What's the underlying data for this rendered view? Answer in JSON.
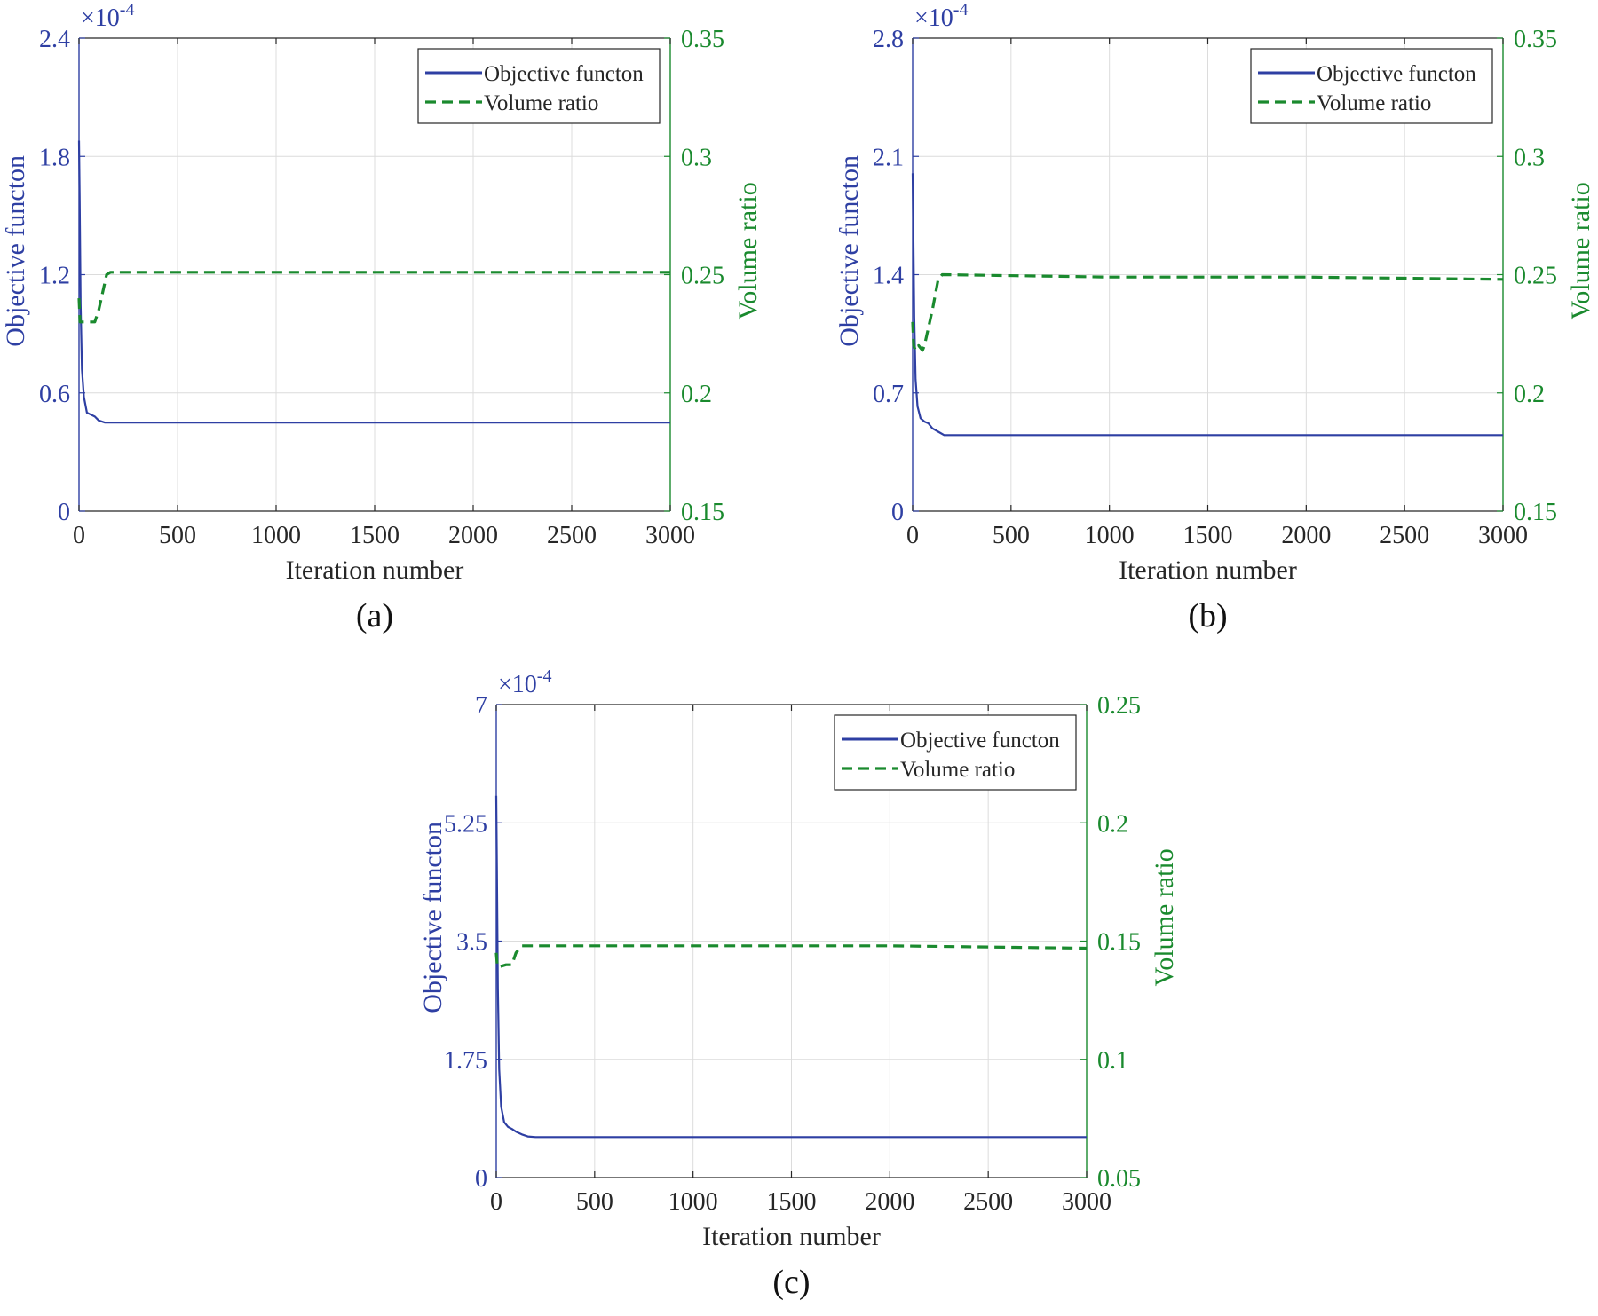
{
  "colors": {
    "objective": "#2e3fa3",
    "volume": "#1a8a2e",
    "axis": "#262626",
    "grid": "#dcdcdc"
  },
  "chart_data": [
    {
      "type": "line",
      "caption": "(a)",
      "xlabel": "Iteration number",
      "ylabel": "Objective functon",
      "y2label": "Volume ratio",
      "scale_label": "×10",
      "scale_exponent": "-4",
      "xlim": [
        0,
        3000
      ],
      "ylim": [
        0,
        2.4
      ],
      "y2lim": [
        0.15,
        0.35
      ],
      "xticks": [
        0,
        500,
        1000,
        1500,
        2000,
        2500,
        3000
      ],
      "xtick_labels": [
        "0",
        "500",
        "1000",
        "1500",
        "2000",
        "2500",
        "3000"
      ],
      "yticks": [
        0,
        0.6,
        1.2,
        1.8,
        2.4
      ],
      "ytick_labels": [
        "0",
        "0.6",
        "1.2",
        "1.8",
        "2.4"
      ],
      "y2ticks": [
        0.15,
        0.2,
        0.25,
        0.3,
        0.35
      ],
      "y2tick_labels": [
        "0.15",
        "0.2",
        "0.25",
        "0.3",
        "0.35"
      ],
      "legend": [
        "Objective functon",
        "Volume ratio"
      ],
      "series": [
        {
          "name": "Objective functon",
          "axis": "left",
          "style": "solid",
          "x": [
            0,
            3,
            8,
            15,
            25,
            40,
            60,
            80,
            100,
            130,
            160,
            200,
            400,
            1000,
            2000,
            3000
          ],
          "y": [
            1.88,
            1.6,
            1.05,
            0.72,
            0.58,
            0.5,
            0.49,
            0.48,
            0.46,
            0.45,
            0.45,
            0.45,
            0.45,
            0.45,
            0.45,
            0.45
          ]
        },
        {
          "name": "Volume ratio",
          "axis": "right",
          "style": "dashed",
          "x": [
            0,
            5,
            10,
            50,
            80,
            100,
            140,
            160,
            1000,
            3000
          ],
          "y": [
            0.24,
            0.23,
            0.23,
            0.23,
            0.23,
            0.235,
            0.25,
            0.251,
            0.251,
            0.251
          ]
        }
      ]
    },
    {
      "type": "line",
      "caption": "(b)",
      "xlabel": "Iteration number",
      "ylabel": "Objective functon",
      "y2label": "Volume ratio",
      "scale_label": "×10",
      "scale_exponent": "-4",
      "xlim": [
        0,
        3000
      ],
      "ylim": [
        0,
        2.8
      ],
      "y2lim": [
        0.15,
        0.35
      ],
      "xticks": [
        0,
        500,
        1000,
        1500,
        2000,
        2500,
        3000
      ],
      "xtick_labels": [
        "0",
        "500",
        "1000",
        "1500",
        "2000",
        "2500",
        "3000"
      ],
      "yticks": [
        0,
        0.7,
        1.4,
        2.1,
        2.8
      ],
      "ytick_labels": [
        "0",
        "0.7",
        "1.4",
        "2.1",
        "2.8"
      ],
      "y2ticks": [
        0.15,
        0.2,
        0.25,
        0.3,
        0.35
      ],
      "y2tick_labels": [
        "0.15",
        "0.2",
        "0.25",
        "0.3",
        "0.35"
      ],
      "legend": [
        "Objective functon",
        "Volume ratio"
      ],
      "series": [
        {
          "name": "Objective functon",
          "axis": "left",
          "style": "solid",
          "x": [
            0,
            3,
            8,
            15,
            25,
            40,
            60,
            80,
            100,
            130,
            160,
            200,
            400,
            1000,
            2000,
            3000
          ],
          "y": [
            2.0,
            1.7,
            1.15,
            0.78,
            0.62,
            0.55,
            0.53,
            0.52,
            0.49,
            0.47,
            0.45,
            0.45,
            0.45,
            0.45,
            0.45,
            0.45
          ]
        },
        {
          "name": "Volume ratio",
          "axis": "right",
          "style": "dashed",
          "x": [
            0,
            5,
            15,
            30,
            50,
            60,
            100,
            130,
            150,
            1000,
            2000,
            3000
          ],
          "y": [
            0.23,
            0.22,
            0.218,
            0.22,
            0.218,
            0.22,
            0.235,
            0.248,
            0.25,
            0.249,
            0.249,
            0.248
          ]
        }
      ]
    },
    {
      "type": "line",
      "caption": "(c)",
      "xlabel": "Iteration number",
      "ylabel": "Objective functon",
      "y2label": "Volume ratio",
      "scale_label": "×10",
      "scale_exponent": "-4",
      "xlim": [
        0,
        3000
      ],
      "ylim": [
        0,
        7
      ],
      "y2lim": [
        0.05,
        0.25
      ],
      "xticks": [
        0,
        500,
        1000,
        1500,
        2000,
        2500,
        3000
      ],
      "xtick_labels": [
        "0",
        "500",
        "1000",
        "1500",
        "2000",
        "2500",
        "3000"
      ],
      "yticks": [
        0,
        1.75,
        3.5,
        5.25,
        7
      ],
      "ytick_labels": [
        "0",
        "1.75",
        "3.5",
        "5.25",
        "7"
      ],
      "y2ticks": [
        0.05,
        0.1,
        0.15,
        0.2,
        0.25
      ],
      "y2tick_labels": [
        "0.05",
        "0.1",
        "0.15",
        "0.2",
        "0.25"
      ],
      "legend": [
        "Objective functon",
        "Volume ratio"
      ],
      "series": [
        {
          "name": "Objective functon",
          "axis": "left",
          "style": "solid",
          "x": [
            0,
            3,
            8,
            15,
            25,
            40,
            60,
            80,
            100,
            130,
            160,
            200,
            400,
            1000,
            2000,
            3000
          ],
          "y": [
            5.65,
            4.6,
            2.8,
            1.6,
            1.05,
            0.82,
            0.75,
            0.72,
            0.68,
            0.64,
            0.61,
            0.6,
            0.6,
            0.6,
            0.6,
            0.6
          ]
        },
        {
          "name": "Volume ratio",
          "axis": "right",
          "style": "dashed",
          "x": [
            0,
            5,
            10,
            50,
            80,
            100,
            130,
            150,
            1000,
            2000,
            3000
          ],
          "y": [
            0.145,
            0.14,
            0.139,
            0.14,
            0.14,
            0.145,
            0.148,
            0.148,
            0.148,
            0.148,
            0.147
          ]
        }
      ]
    }
  ]
}
